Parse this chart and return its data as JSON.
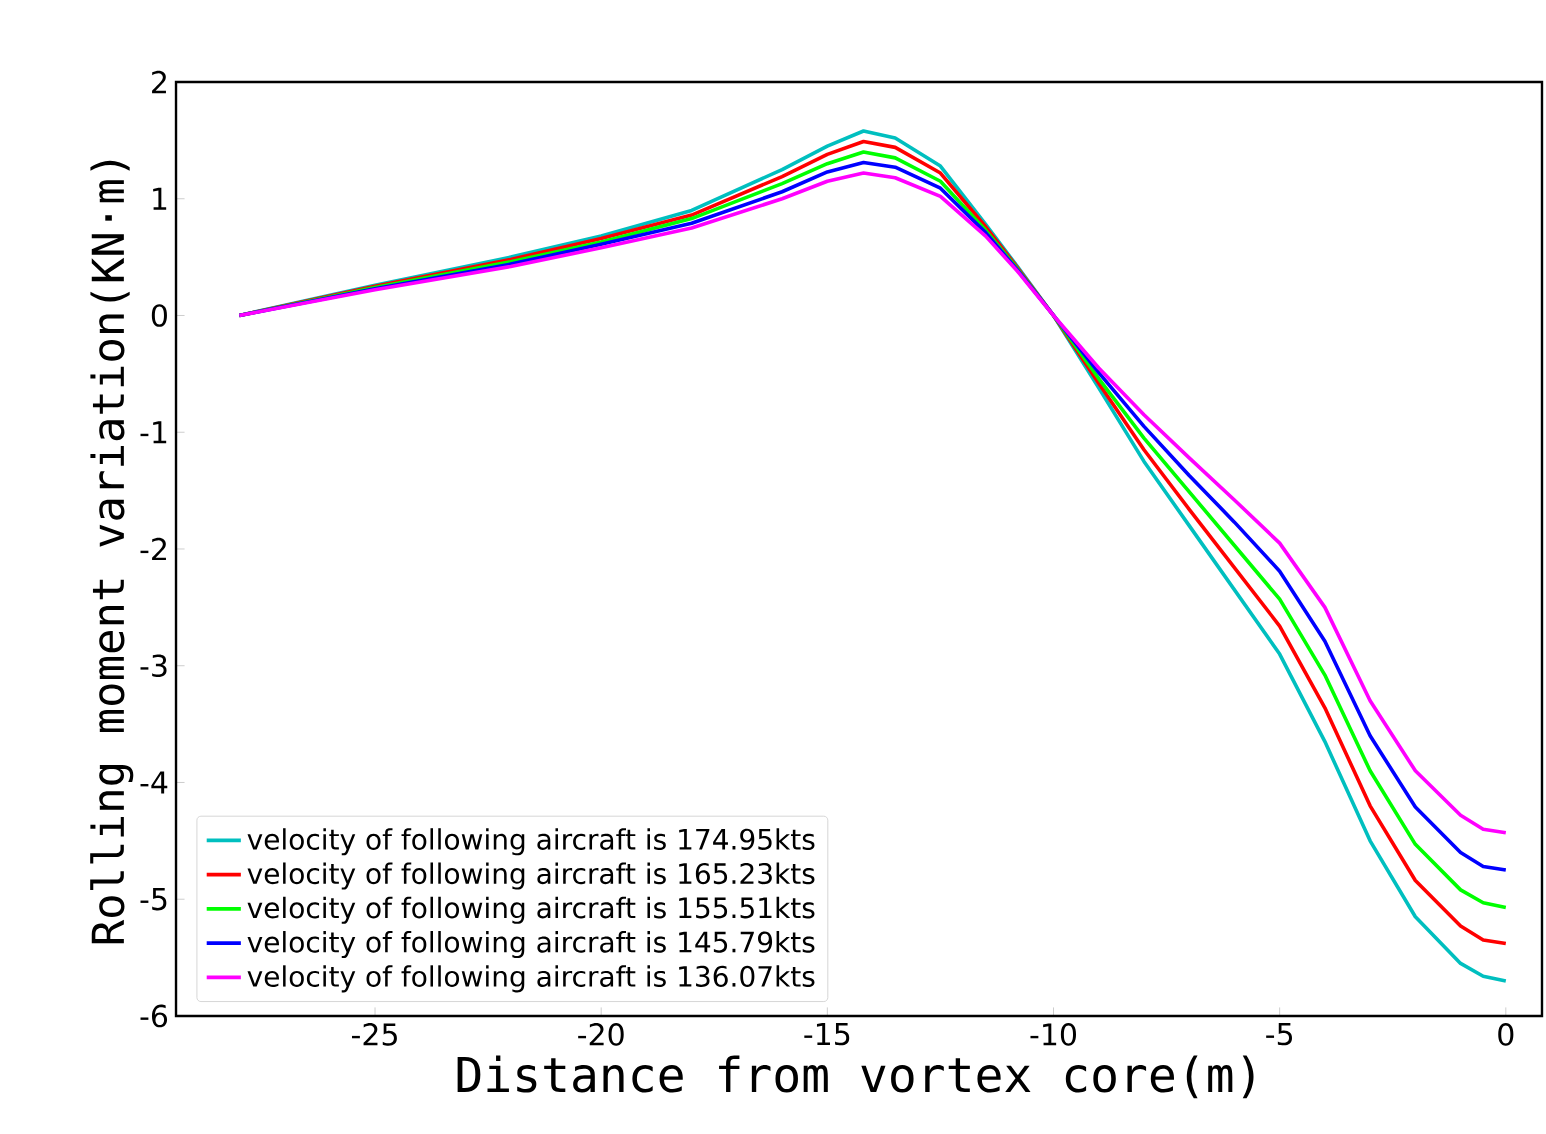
{
  "chart_data": {
    "type": "line",
    "xlabel": "Distance from vortex core(m)",
    "ylabel": "Rolling moment variation(KN·m)",
    "x": [
      -28,
      -25,
      -22,
      -20,
      -18,
      -16,
      -15,
      -14.2,
      -13.5,
      -12.5,
      -11.5,
      -10.8,
      -10,
      -9,
      -8,
      -7,
      -6,
      -5,
      -4,
      -3,
      -2,
      -1,
      -0.5,
      0
    ],
    "xlim": [
      -29.4,
      0.8
    ],
    "xticks": [
      -25,
      -20,
      -15,
      -10,
      -5,
      0
    ],
    "ylim": [
      -6,
      2
    ],
    "yticks": [
      -6,
      -5,
      -4,
      -3,
      -2,
      -1,
      0,
      1,
      2
    ],
    "legend": "bottom left",
    "grid": false,
    "marker": "none",
    "line_style": "solid",
    "series": [
      {
        "name": "velocity of following aircraft is 174.95kts",
        "color": "#00bfbf",
        "values": [
          0,
          0.26,
          0.5,
          0.68,
          0.9,
          1.25,
          1.45,
          1.58,
          1.52,
          1.28,
          0.78,
          0.42,
          0,
          -0.62,
          -1.25,
          -1.8,
          -2.35,
          -2.9,
          -3.65,
          -4.5,
          -5.15,
          -5.55,
          -5.66,
          -5.7
        ]
      },
      {
        "name": "velocity of following aircraft is 165.23kts",
        "color": "#ff0000",
        "values": [
          0,
          0.25,
          0.48,
          0.66,
          0.86,
          1.19,
          1.38,
          1.49,
          1.44,
          1.22,
          0.76,
          0.41,
          0,
          -0.58,
          -1.15,
          -1.66,
          -2.16,
          -2.66,
          -3.36,
          -4.2,
          -4.84,
          -5.23,
          -5.35,
          -5.38
        ]
      },
      {
        "name": "velocity of following aircraft is 155.51kts",
        "color": "#00ff00",
        "values": [
          0,
          0.24,
          0.46,
          0.63,
          0.83,
          1.13,
          1.3,
          1.4,
          1.35,
          1.15,
          0.73,
          0.4,
          0,
          -0.54,
          -1.05,
          -1.51,
          -1.97,
          -2.43,
          -3.08,
          -3.9,
          -4.53,
          -4.92,
          -5.03,
          -5.07
        ]
      },
      {
        "name": "velocity of following aircraft is 145.79kts",
        "color": "#0000ff",
        "values": [
          0,
          0.23,
          0.44,
          0.61,
          0.79,
          1.06,
          1.23,
          1.31,
          1.27,
          1.09,
          0.71,
          0.39,
          0,
          -0.49,
          -0.95,
          -1.37,
          -1.77,
          -2.19,
          -2.79,
          -3.6,
          -4.21,
          -4.6,
          -4.72,
          -4.75
        ]
      },
      {
        "name": "velocity of following aircraft is 136.07kts",
        "color": "#ff00ff",
        "values": [
          0,
          0.22,
          0.42,
          0.58,
          0.75,
          1.0,
          1.15,
          1.22,
          1.18,
          1.02,
          0.68,
          0.38,
          0,
          -0.45,
          -0.85,
          -1.22,
          -1.58,
          -1.95,
          -2.5,
          -3.3,
          -3.9,
          -4.28,
          -4.4,
          -4.43
        ]
      }
    ]
  }
}
